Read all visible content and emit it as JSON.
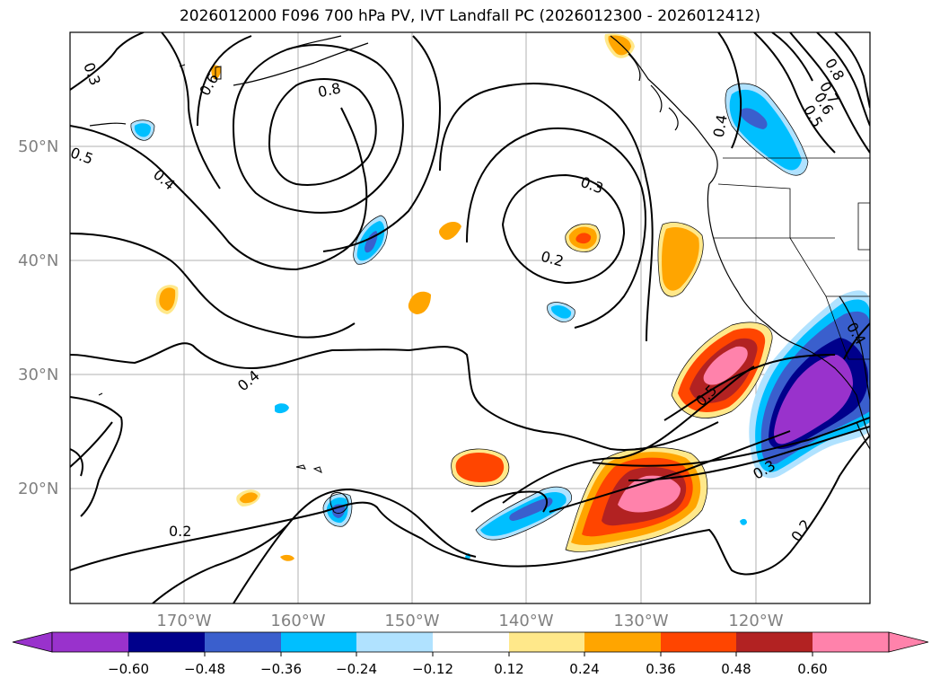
{
  "title": "2026012000 F096 700 hPa PV, IVT Landfall PC (2026012300 - 2026012412)",
  "map": {
    "lat_labels": [
      "50°N",
      "40°N",
      "30°N",
      "20°N"
    ],
    "lon_labels": [
      "170°W",
      "160°W",
      "150°W",
      "140°W",
      "130°W",
      "120°W"
    ],
    "contour_labels": [
      "0.3",
      "0.5",
      "0.4",
      "0.6",
      "0.8",
      "0.3",
      "0.2",
      "0.4",
      "0.2",
      "0.5",
      "0.3",
      "0.2",
      "0.4",
      "0.8",
      "0.7",
      "0.6",
      "0.5",
      "0.4"
    ],
    "label_color": "#808080",
    "grid_color": "#b0b0b0"
  },
  "colorbar": {
    "ticks": [
      "−0.60",
      "−0.48",
      "−0.36",
      "−0.24",
      "−0.12",
      "0.12",
      "0.24",
      "0.36",
      "0.48",
      "0.60"
    ],
    "colors": [
      "#9932cc",
      "#00008b",
      "#3a5fcd",
      "#00bfff",
      "#b0e2ff",
      "#ffffff",
      "#ffe88a",
      "#ffa500",
      "#ff4500",
      "#b22222",
      "#ff82ab"
    ]
  }
}
